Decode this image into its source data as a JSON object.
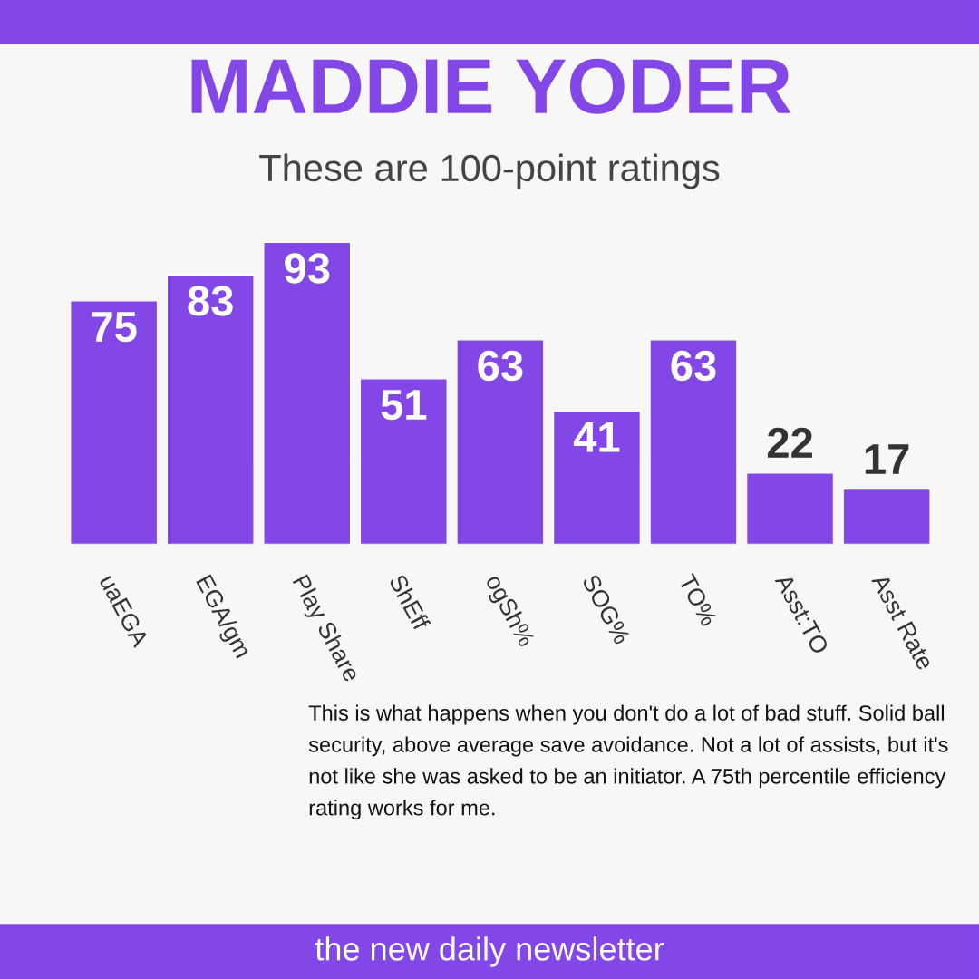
{
  "chart_data": {
    "type": "bar",
    "title": "MADDIE YODER",
    "subtitle": "These are 100-point ratings",
    "categories": [
      "uaEGA",
      "EGA/gm",
      "Play Share",
      "ShEff",
      "ogSh%",
      "SOG%",
      "TO%",
      "Asst:TO",
      "Asst Rate"
    ],
    "values": [
      75,
      83,
      93,
      51,
      63,
      41,
      63,
      22,
      17
    ],
    "color": "#8347e8",
    "data_labels": true,
    "grid": false,
    "legend": false,
    "annotations": [
      "This is what happens when you don't do a lot of bad stuff. Solid ball security, above average save avoidance. Not a lot of assists, but it's not like she was asked to be an initiator. A 75th percentile efficiency rating works for me.",
      "the new daily newsletter"
    ]
  }
}
